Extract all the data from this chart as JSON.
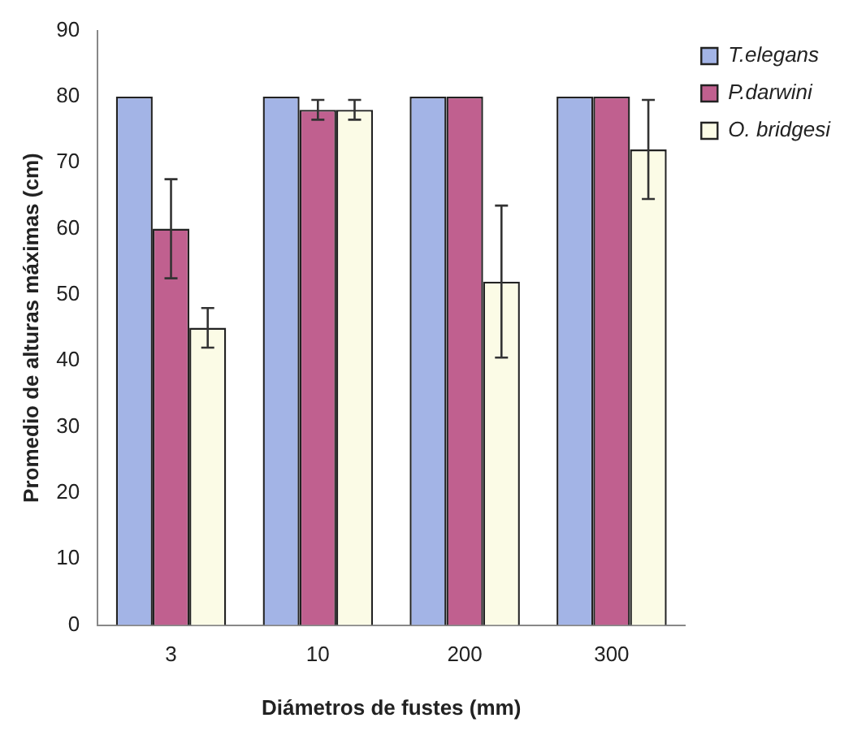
{
  "chart_data": {
    "type": "bar",
    "xlabel": "Diámetros de fustes (mm)",
    "ylabel": "Promedio de alturas máximas (cm)",
    "categories": [
      "3",
      "10",
      "200",
      "300"
    ],
    "series": [
      {
        "name": "T.elegans",
        "color": "#a3b4e6",
        "values": [
          80,
          80,
          80,
          80
        ]
      },
      {
        "name": "P.darwini",
        "color": "#c0608f",
        "values": [
          60,
          78,
          80,
          80
        ],
        "errors": [
          7.5,
          1.5,
          null,
          null
        ]
      },
      {
        "name": "O. bridgesi",
        "color": "#fbfbe6",
        "values": [
          45,
          78,
          52,
          72
        ],
        "errors": [
          3,
          1.5,
          11.5,
          7.5
        ]
      }
    ],
    "ylim": [
      0,
      90
    ],
    "yticks": [
      0,
      10,
      20,
      30,
      40,
      50,
      60,
      70,
      80,
      90
    ],
    "grid": false,
    "legend": "top right"
  }
}
